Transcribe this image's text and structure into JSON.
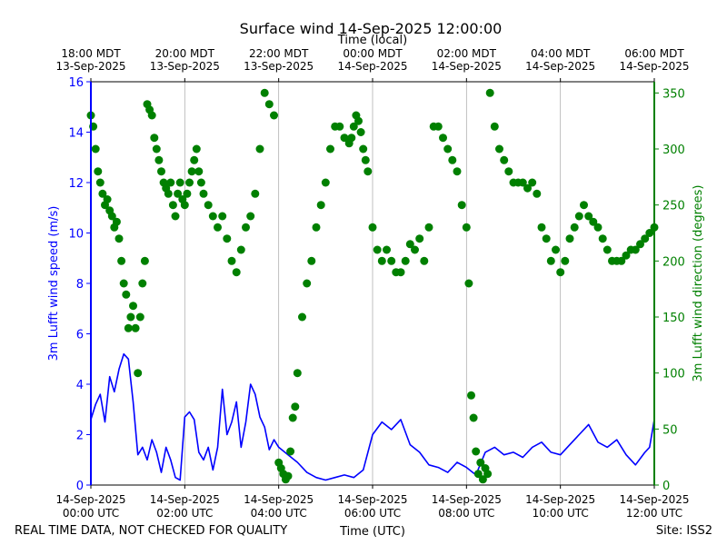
{
  "chart_data": {
    "type": "line",
    "title": "Surface wind 14-Sep-2025 12:00:00",
    "top_axis_label": "Time (local)",
    "xlabel": "Time (UTC)",
    "ylabel": "3m Lufft wind speed (m/s)",
    "y2label": "3m Lufft wind direction (degrees)",
    "footer_left": "REAL TIME DATA, NOT CHECKED FOR QUALITY",
    "footer_right": "Site: ISS2",
    "x_range_hours_utc": [
      0,
      12
    ],
    "ylim": [
      0,
      16
    ],
    "y2lim": [
      0,
      360
    ],
    "y_ticks": [
      0,
      2,
      4,
      6,
      8,
      10,
      12,
      14,
      16
    ],
    "y2_ticks": [
      0,
      50,
      100,
      150,
      200,
      250,
      300,
      350
    ],
    "colors": {
      "speed": "#0000ff",
      "direction": "#008000",
      "grid": "#b0b0b0"
    },
    "bottom_ticks": [
      {
        "hour": 0,
        "date": "14-Sep-2025",
        "time": "00:00 UTC"
      },
      {
        "hour": 2,
        "date": "14-Sep-2025",
        "time": "02:00 UTC"
      },
      {
        "hour": 4,
        "date": "14-Sep-2025",
        "time": "04:00 UTC"
      },
      {
        "hour": 6,
        "date": "14-Sep-2025",
        "time": "06:00 UTC"
      },
      {
        "hour": 8,
        "date": "14-Sep-2025",
        "time": "08:00 UTC"
      },
      {
        "hour": 10,
        "date": "14-Sep-2025",
        "time": "10:00 UTC"
      },
      {
        "hour": 12,
        "date": "14-Sep-2025",
        "time": "12:00 UTC"
      }
    ],
    "top_ticks": [
      {
        "hour": 0,
        "time": "18:00 MDT",
        "date": "13-Sep-2025"
      },
      {
        "hour": 2,
        "time": "20:00 MDT",
        "date": "13-Sep-2025"
      },
      {
        "hour": 4,
        "time": "22:00 MDT",
        "date": "13-Sep-2025"
      },
      {
        "hour": 6,
        "time": "00:00 MDT",
        "date": "14-Sep-2025"
      },
      {
        "hour": 8,
        "time": "02:00 MDT",
        "date": "14-Sep-2025"
      },
      {
        "hour": 10,
        "time": "04:00 MDT",
        "date": "14-Sep-2025"
      },
      {
        "hour": 12,
        "time": "06:00 MDT",
        "date": "14-Sep-2025"
      }
    ],
    "series": [
      {
        "name": "wind speed",
        "axis": "left",
        "style": "line",
        "x": [
          0.0,
          0.1,
          0.2,
          0.3,
          0.4,
          0.5,
          0.6,
          0.7,
          0.8,
          0.9,
          1.0,
          1.1,
          1.2,
          1.3,
          1.4,
          1.5,
          1.6,
          1.7,
          1.8,
          1.9,
          2.0,
          2.1,
          2.2,
          2.3,
          2.4,
          2.5,
          2.6,
          2.7,
          2.8,
          2.9,
          3.0,
          3.1,
          3.2,
          3.3,
          3.4,
          3.5,
          3.6,
          3.7,
          3.8,
          3.9,
          4.0,
          4.2,
          4.4,
          4.6,
          4.8,
          5.0,
          5.2,
          5.4,
          5.6,
          5.8,
          6.0,
          6.2,
          6.4,
          6.6,
          6.8,
          7.0,
          7.2,
          7.4,
          7.6,
          7.8,
          8.0,
          8.2,
          8.4,
          8.6,
          8.8,
          9.0,
          9.2,
          9.4,
          9.6,
          9.8,
          10.0,
          10.2,
          10.4,
          10.6,
          10.8,
          11.0,
          11.2,
          11.4,
          11.6,
          11.8,
          11.9,
          12.0
        ],
        "values": [
          2.6,
          3.2,
          3.6,
          2.5,
          4.3,
          3.7,
          4.6,
          5.2,
          5.0,
          3.3,
          1.2,
          1.5,
          1.0,
          1.8,
          1.3,
          0.5,
          1.5,
          1.0,
          0.3,
          0.2,
          2.7,
          2.9,
          2.6,
          1.3,
          1.0,
          1.5,
          0.6,
          1.5,
          3.8,
          2.0,
          2.5,
          3.3,
          1.5,
          2.5,
          4.0,
          3.6,
          2.7,
          2.3,
          1.4,
          1.8,
          1.5,
          1.2,
          0.9,
          0.5,
          0.3,
          0.2,
          0.3,
          0.4,
          0.3,
          0.6,
          2.0,
          2.5,
          2.2,
          2.6,
          1.6,
          1.3,
          0.8,
          0.7,
          0.5,
          0.9,
          0.7,
          0.4,
          1.3,
          1.5,
          1.2,
          1.3,
          1.1,
          1.5,
          1.7,
          1.3,
          1.2,
          1.6,
          2.0,
          2.4,
          1.7,
          1.5,
          1.8,
          1.2,
          0.8,
          1.3,
          1.5,
          2.6
        ]
      },
      {
        "name": "wind direction",
        "axis": "right",
        "style": "markers",
        "x": [
          0.0,
          0.05,
          0.1,
          0.15,
          0.2,
          0.25,
          0.3,
          0.35,
          0.4,
          0.45,
          0.5,
          0.55,
          0.6,
          0.65,
          0.7,
          0.75,
          0.8,
          0.85,
          0.9,
          0.95,
          1.0,
          1.05,
          1.1,
          1.15,
          1.2,
          1.25,
          1.3,
          1.35,
          1.4,
          1.45,
          1.5,
          1.55,
          1.6,
          1.65,
          1.7,
          1.75,
          1.8,
          1.85,
          1.9,
          1.95,
          2.0,
          2.05,
          2.1,
          2.15,
          2.2,
          2.25,
          2.3,
          2.35,
          2.4,
          2.5,
          2.6,
          2.7,
          2.8,
          2.9,
          3.0,
          3.1,
          3.2,
          3.3,
          3.4,
          3.5,
          3.6,
          3.7,
          3.8,
          3.9,
          4.0,
          4.05,
          4.1,
          4.15,
          4.2,
          4.25,
          4.3,
          4.35,
          4.4,
          4.5,
          4.6,
          4.7,
          4.8,
          4.9,
          5.0,
          5.1,
          5.2,
          5.3,
          5.4,
          5.5,
          5.55,
          5.6,
          5.65,
          5.7,
          5.75,
          5.8,
          5.85,
          5.9,
          6.0,
          6.1,
          6.2,
          6.3,
          6.4,
          6.5,
          6.6,
          6.7,
          6.8,
          6.9,
          7.0,
          7.1,
          7.2,
          7.3,
          7.4,
          7.5,
          7.6,
          7.7,
          7.8,
          7.9,
          8.0,
          8.05,
          8.1,
          8.15,
          8.2,
          8.25,
          8.3,
          8.35,
          8.4,
          8.45,
          8.5,
          8.6,
          8.7,
          8.8,
          8.9,
          9.0,
          9.1,
          9.2,
          9.3,
          9.4,
          9.5,
          9.6,
          9.7,
          9.8,
          9.9,
          10.0,
          10.1,
          10.2,
          10.3,
          10.4,
          10.5,
          10.6,
          10.7,
          10.8,
          10.9,
          11.0,
          11.1,
          11.2,
          11.3,
          11.4,
          11.5,
          11.6,
          11.7,
          11.8,
          11.9,
          12.0
        ],
        "values": [
          330,
          320,
          300,
          280,
          270,
          260,
          250,
          255,
          245,
          240,
          230,
          235,
          220,
          200,
          180,
          170,
          140,
          150,
          160,
          140,
          100,
          150,
          180,
          200,
          340,
          335,
          330,
          310,
          300,
          290,
          280,
          270,
          265,
          260,
          270,
          250,
          240,
          260,
          270,
          255,
          250,
          260,
          270,
          280,
          290,
          300,
          280,
          270,
          260,
          250,
          240,
          230,
          240,
          220,
          200,
          190,
          210,
          230,
          240,
          260,
          300,
          350,
          340,
          330,
          20,
          15,
          10,
          5,
          8,
          30,
          60,
          70,
          100,
          150,
          180,
          200,
          230,
          250,
          270,
          300,
          320,
          320,
          310,
          305,
          310,
          320,
          330,
          325,
          315,
          300,
          290,
          280,
          230,
          210,
          200,
          210,
          200,
          190,
          190,
          200,
          215,
          210,
          220,
          200,
          230,
          320,
          320,
          310,
          300,
          290,
          280,
          250,
          230,
          180,
          80,
          60,
          30,
          10,
          20,
          5,
          15,
          10,
          350,
          320,
          300,
          290,
          280,
          270,
          270,
          270,
          265,
          270,
          260,
          230,
          220,
          200,
          210,
          190,
          200,
          220,
          230,
          240,
          250,
          240,
          235,
          230,
          220,
          210,
          200,
          200,
          200,
          205,
          210,
          210,
          215,
          220,
          225,
          230
        ]
      }
    ]
  }
}
